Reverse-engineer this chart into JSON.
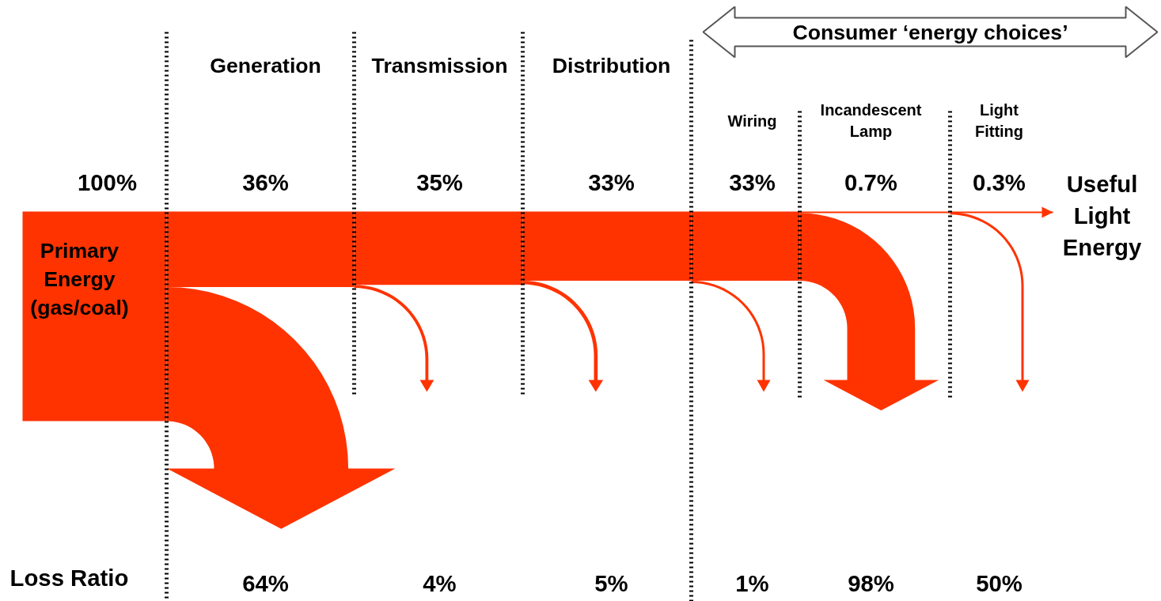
{
  "chart_data": {
    "type": "other",
    "categories": [
      "Primary Energy (gas/coal)",
      "Generation",
      "Transmission",
      "Distribution",
      "Wiring",
      "Incandescent Lamp",
      "Light Fitting"
    ],
    "series": [
      {
        "color": "#ff3300",
        "values": [
          100,
          36,
          35,
          33,
          33,
          0.7,
          0.3
        ],
        "value_labels": [
          "100%",
          "36%",
          "35%",
          "33%",
          "33%",
          "0.7%",
          "0.3%"
        ]
      },
      {
        "name": "Loss Ratio",
        "values": [
          null,
          64,
          4,
          5,
          1,
          98,
          50
        ],
        "value_labels": [
          null,
          "64%",
          "4%",
          "5%",
          "1%",
          "98%",
          "50%"
        ]
      }
    ],
    "annotations": [
      "Useful Light Energy",
      "Consumer ‘energy choices’"
    ]
  }
}
